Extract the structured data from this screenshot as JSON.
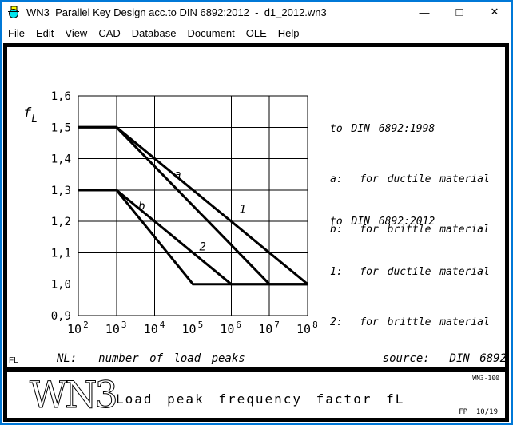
{
  "window": {
    "title": "WN3  Parallel Key Design acc.to DIN 6892:2012  -  d1_2012.wn3",
    "accent_color": "#0078d7",
    "controls": {
      "minimize": "—",
      "maximize": "□",
      "close": "✕"
    }
  },
  "menu": {
    "items": [
      {
        "label": "File",
        "underline": 0
      },
      {
        "label": "Edit",
        "underline": 0
      },
      {
        "label": "View",
        "underline": 0
      },
      {
        "label": "CAD",
        "underline": 0
      },
      {
        "label": "Database",
        "underline": 0
      },
      {
        "label": "Document",
        "underline": 1
      },
      {
        "label": "OLE",
        "underline": 1
      },
      {
        "label": "Help",
        "underline": 0
      }
    ]
  },
  "chart_data": {
    "type": "line",
    "title": "",
    "xlabel": "NL:  number of load peaks",
    "ylabel": "fL",
    "ylabel_main": "f",
    "ylabel_sub": "L",
    "x_scale": "log10",
    "xlim": [
      100,
      100000000
    ],
    "ylim": [
      0.9,
      1.6
    ],
    "grid": true,
    "line_color": "#000000",
    "x_ticks": [
      {
        "base": "10",
        "exponent": "2",
        "value": 100
      },
      {
        "base": "10",
        "exponent": "3",
        "value": 1000
      },
      {
        "base": "10",
        "exponent": "4",
        "value": 10000
      },
      {
        "base": "10",
        "exponent": "5",
        "value": 100000
      },
      {
        "base": "10",
        "exponent": "6",
        "value": 1000000
      },
      {
        "base": "10",
        "exponent": "7",
        "value": 10000000
      },
      {
        "base": "10",
        "exponent": "8",
        "value": 100000000
      }
    ],
    "y_ticks": [
      {
        "label": "1,6",
        "value": 1.6
      },
      {
        "label": "1,5",
        "value": 1.5
      },
      {
        "label": "1,4",
        "value": 1.4
      },
      {
        "label": "1,3",
        "value": 1.3
      },
      {
        "label": "1,2",
        "value": 1.2
      },
      {
        "label": "1,1",
        "value": 1.1
      },
      {
        "label": "1,0",
        "value": 1.0
      },
      {
        "label": "0,9",
        "value": 0.9
      }
    ],
    "series": [
      {
        "name": "a",
        "points": [
          [
            100,
            1.5
          ],
          [
            1000,
            1.5
          ],
          [
            10000000,
            1.0
          ],
          [
            100000000,
            1.0
          ]
        ],
        "label_pos": [
          40000,
          1.35
        ]
      },
      {
        "name": "1",
        "points": [
          [
            100,
            1.5
          ],
          [
            1000,
            1.5
          ],
          [
            100000000,
            1.0
          ]
        ],
        "label_pos": [
          2000000,
          1.24
        ]
      },
      {
        "name": "b",
        "points": [
          [
            100,
            1.3
          ],
          [
            1000,
            1.3
          ],
          [
            100000,
            1.0
          ],
          [
            100000000,
            1.0
          ]
        ],
        "label_pos": [
          4600,
          1.25
        ]
      },
      {
        "name": "2",
        "points": [
          [
            100,
            1.3
          ],
          [
            1000,
            1.3
          ],
          [
            1000000,
            1.0
          ],
          [
            100000000,
            1.0
          ]
        ],
        "label_pos": [
          180000,
          1.12
        ]
      }
    ]
  },
  "annotations": {
    "blocks": [
      {
        "title": "to DIN 6892:1998",
        "lines": [
          "a:  for ductile material",
          "b:  for brittle material"
        ]
      },
      {
        "title": "to DIN 6892:2012",
        "lines": [
          "1:  for ductile material",
          "2:  for brittle material"
        ]
      }
    ]
  },
  "captions": {
    "sheet_code": "FL",
    "source": "source:  DIN 6892"
  },
  "footer": {
    "logo": "WN3",
    "title": "Load peak frequency factor fL",
    "doc_number": "WN3-100",
    "page_ref": "FP  10/19"
  }
}
